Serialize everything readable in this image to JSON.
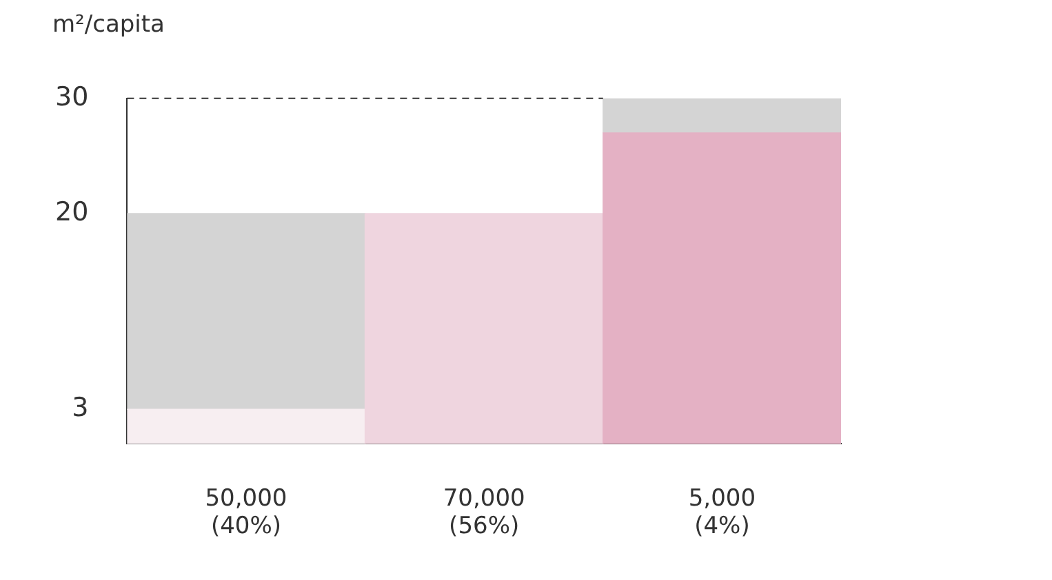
{
  "chart_data": {
    "type": "bar",
    "ylabel": "m²/capita",
    "categories": [
      "50,000\n(40%)",
      "70,000\n(56%)",
      "5,000\n(4%)"
    ],
    "stacked": true,
    "series": [
      {
        "colors": [
          "#f7eef1",
          "#efd5df",
          "#e4b1c4"
        ],
        "values": [
          3,
          20,
          27
        ]
      },
      {
        "color": "#d4d4d4",
        "values": [
          17,
          null,
          3
        ]
      }
    ],
    "ylim": [
      0,
      30
    ],
    "yticks": [
      3,
      20,
      30
    ],
    "grid": false,
    "legend": false,
    "ref_lines": [
      {
        "axis": "y",
        "value": 30,
        "line_style": "dashed",
        "color": "#333333"
      }
    ]
  }
}
